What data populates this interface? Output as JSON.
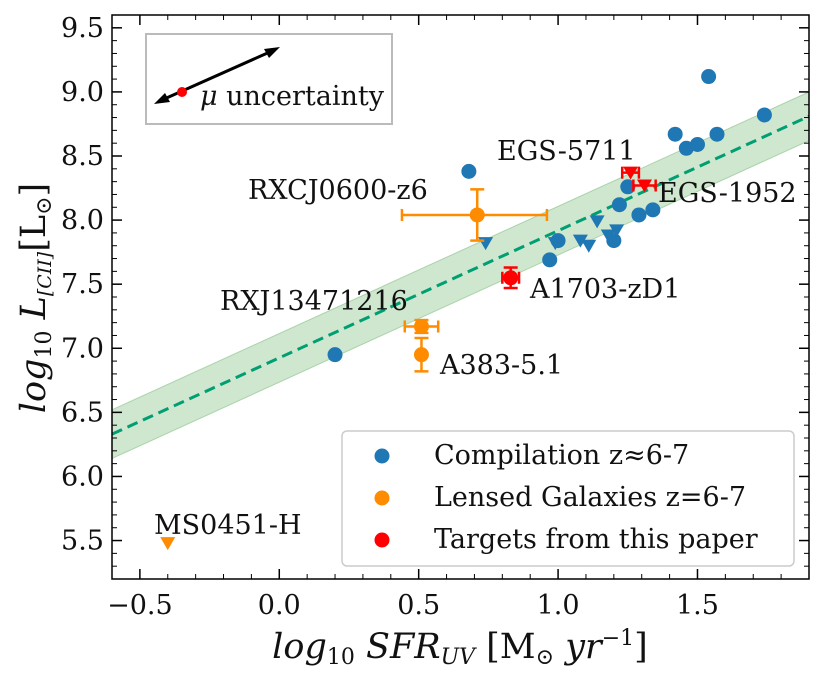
{
  "chart_data": {
    "type": "scatter",
    "xlabel_parts": {
      "a": "log",
      "a_sub": "10",
      "b": " SFR",
      "b_sub": "UV",
      "c": " [M",
      "c_sub": "⊙",
      "d": " yr",
      "d_sup": "−1",
      "e": "]"
    },
    "ylabel_parts": {
      "a": "log",
      "a_sub": "10",
      "b": " L",
      "b_sub": "[CII]",
      "c": "[L",
      "c_sub": "⊙",
      "d": "]"
    },
    "xlim": [
      -0.6,
      1.9
    ],
    "ylim": [
      5.2,
      9.6
    ],
    "xticks": [
      "−0.5",
      "0.0",
      "0.5",
      "1.0",
      "1.5"
    ],
    "xtick_values": [
      -0.5,
      0.0,
      0.5,
      1.0,
      1.5
    ],
    "yticks": [
      "5.5",
      "6.0",
      "6.5",
      "7.0",
      "7.5",
      "8.0",
      "8.5",
      "9.0",
      "9.5"
    ],
    "ytick_values": [
      5.5,
      6.0,
      6.5,
      7.0,
      7.5,
      8.0,
      8.5,
      9.0,
      9.5
    ],
    "fit_line": {
      "x": [
        -0.6,
        1.9
      ],
      "y": [
        6.33,
        8.81
      ],
      "color": "#009e73",
      "band_halfwidth": 0.19,
      "band_color": "#a6d4a6"
    },
    "colors": {
      "compilation": "#1f77b4",
      "lensed": "#ff8c00",
      "targets": "#ff0000"
    },
    "series": [
      {
        "name": "Compilation z≈6-7",
        "detections": [
          {
            "x": 0.2,
            "y": 6.95
          },
          {
            "x": 0.68,
            "y": 8.38
          },
          {
            "x": 0.97,
            "y": 7.69
          },
          {
            "x": 1.0,
            "y": 7.84
          },
          {
            "x": 1.2,
            "y": 7.84
          },
          {
            "x": 1.22,
            "y": 8.12
          },
          {
            "x": 1.25,
            "y": 8.26
          },
          {
            "x": 1.29,
            "y": 8.04
          },
          {
            "x": 1.34,
            "y": 8.08
          },
          {
            "x": 1.42,
            "y": 8.67
          },
          {
            "x": 1.46,
            "y": 8.56
          },
          {
            "x": 1.5,
            "y": 8.59
          },
          {
            "x": 1.54,
            "y": 9.12
          },
          {
            "x": 1.57,
            "y": 8.67
          },
          {
            "x": 1.74,
            "y": 8.82
          }
        ],
        "upper_limits": [
          {
            "x": 0.74,
            "y": 7.82
          },
          {
            "x": 0.99,
            "y": 7.82
          },
          {
            "x": 1.08,
            "y": 7.84
          },
          {
            "x": 1.11,
            "y": 7.8
          },
          {
            "x": 1.14,
            "y": 7.99
          },
          {
            "x": 1.18,
            "y": 7.88
          },
          {
            "x": 1.21,
            "y": 7.92
          }
        ]
      },
      {
        "name": "Lensed Galaxies z=6-7",
        "detections": [
          {
            "x": 0.71,
            "y": 8.04,
            "xerr": [
              0.27,
              0.25
            ],
            "yerr": [
              0.2,
              0.2
            ],
            "label": "RXCJ0600-z6"
          },
          {
            "x": 0.51,
            "y": 7.17,
            "xerr": [
              0.06,
              0.06
            ],
            "yerr": [
              0.05,
              0.05
            ],
            "label": "RXJ13471216"
          },
          {
            "x": 0.51,
            "y": 6.95,
            "xerr": [
              0.0,
              0.0
            ],
            "yerr": [
              0.13,
              0.13
            ],
            "label": "A383-5.1"
          }
        ],
        "upper_limits": [
          {
            "x": -0.4,
            "y": 5.48,
            "label": "MS0451-H"
          }
        ]
      },
      {
        "name": "Targets from this paper",
        "detections": [
          {
            "x": 0.83,
            "y": 7.55,
            "xerr": [
              0.03,
              0.03
            ],
            "yerr": [
              0.08,
              0.08
            ],
            "label": "A1703-zD1"
          }
        ],
        "upper_limits": [
          {
            "x": 1.26,
            "y": 8.37,
            "xerr": [
              0.03,
              0.03
            ],
            "label": "EGS-5711"
          },
          {
            "x": 1.31,
            "y": 8.27,
            "xerr": [
              0.04,
              0.04
            ],
            "label": "EGS-1952"
          }
        ]
      }
    ],
    "inset": {
      "label_symbol": "μ",
      "label_rest": " uncertainty"
    }
  }
}
